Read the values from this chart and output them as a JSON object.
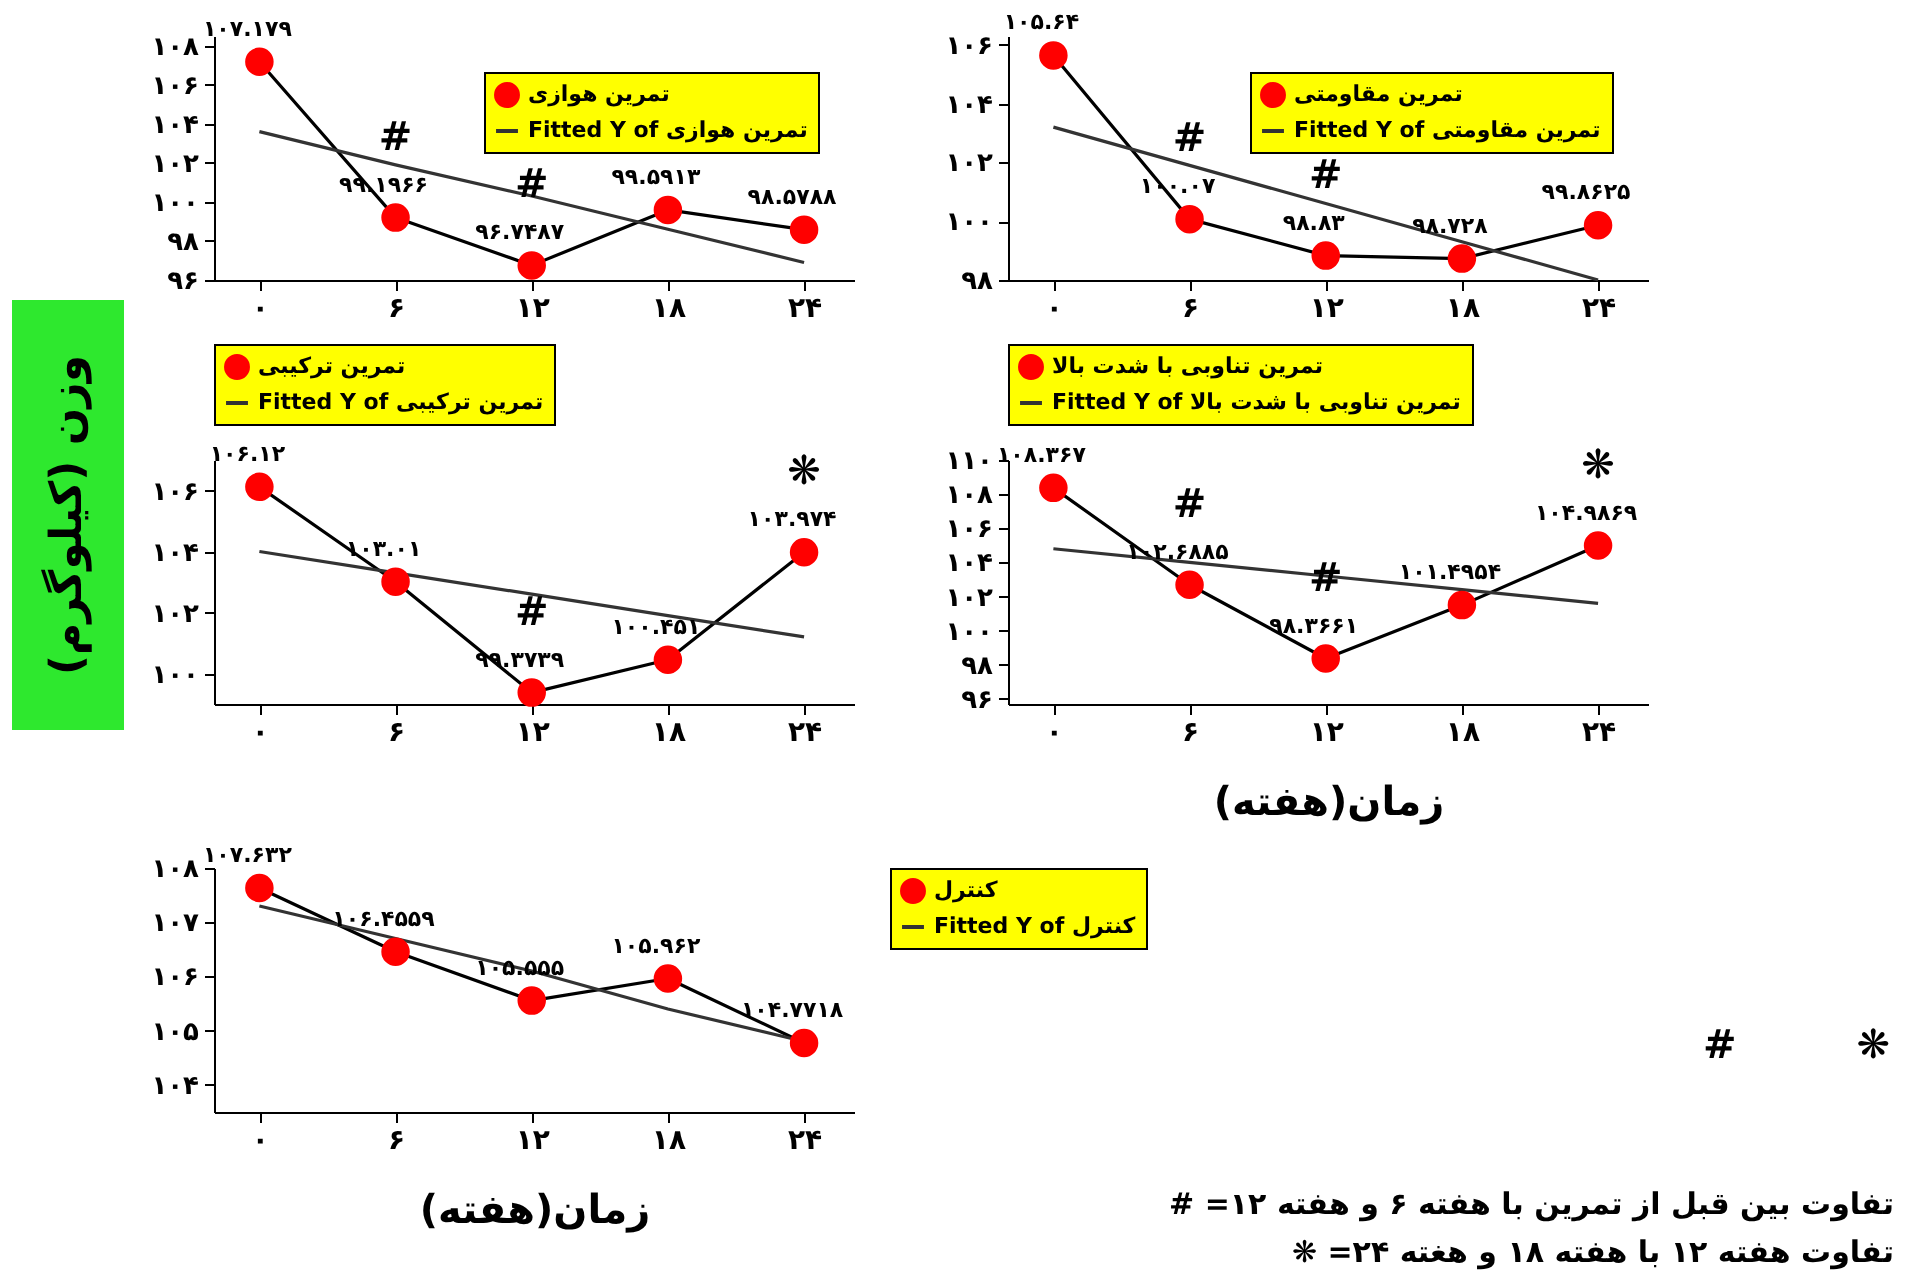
{
  "chart_data": [
    {
      "type": "line",
      "x": [
        0,
        6,
        12,
        18,
        24
      ],
      "xlim": [
        -2,
        26.2
      ],
      "xticks": [
        {
          "value": 0,
          "label": "۰"
        },
        {
          "value": 6,
          "label": "۶"
        },
        {
          "value": 12,
          "label": "۱۲"
        },
        {
          "value": 18,
          "label": "۱۸"
        },
        {
          "value": 24,
          "label": "۲۴"
        }
      ],
      "ylim": [
        96,
        108.5
      ],
      "yticks": [
        {
          "value": 96,
          "label": "۹۶"
        },
        {
          "value": 98,
          "label": "۹۸"
        },
        {
          "value": 100,
          "label": "۱۰۰"
        },
        {
          "value": 102,
          "label": "۱۰۲"
        },
        {
          "value": 104,
          "label": "۱۰۴"
        },
        {
          "value": 106,
          "label": "۱۰۶"
        },
        {
          "value": 108,
          "label": "۱۰۸"
        }
      ],
      "legend": "top right",
      "grid": false,
      "series": [
        {
          "name": "تمرین هوازی",
          "color": "#ff0000",
          "marker": "circle",
          "values": [
            107.179,
            99.1966,
            96.7487,
            99.5913,
            98.5788
          ],
          "value_labels": [
            "۱۰۷.۱۷۹",
            "۹۹.۱۹۶۶",
            "۹۶.۷۴۸۷",
            "۹۹.۵۹۱۳",
            "۹۸.۵۷۸۸"
          ]
        },
        {
          "name": "Fitted Y of تمرین هوازی",
          "color": "#333333",
          "marker": "none",
          "values": [
            103.6,
            101.9,
            100.3,
            98.6,
            96.9
          ]
        }
      ],
      "annotations": [
        {
          "text": "#",
          "x": 6,
          "y": 99.1966
        },
        {
          "text": "#",
          "x": 12,
          "y": 96.7487
        }
      ]
    },
    {
      "type": "line",
      "x": [
        0,
        6,
        12,
        18,
        24
      ],
      "xlim": [
        -2,
        26.2
      ],
      "xticks": [
        {
          "value": 0,
          "label": "۰"
        },
        {
          "value": 6,
          "label": "۶"
        },
        {
          "value": 12,
          "label": "۱۲"
        },
        {
          "value": 18,
          "label": "۱۸"
        },
        {
          "value": 24,
          "label": "۲۴"
        }
      ],
      "ylim": [
        98,
        106.3
      ],
      "yticks": [
        {
          "value": 98,
          "label": "۹۸"
        },
        {
          "value": 100,
          "label": "۱۰۰"
        },
        {
          "value": 102,
          "label": "۱۰۲"
        },
        {
          "value": 104,
          "label": "۱۰۴"
        },
        {
          "value": 106,
          "label": "۱۰۶"
        }
      ],
      "legend": "top right",
      "grid": false,
      "series": [
        {
          "name": "تمرین مقاومتی",
          "color": "#ff0000",
          "marker": "circle",
          "values": [
            105.64,
            100.07,
            98.83,
            98.728,
            99.8625
          ],
          "value_labels": [
            "۱۰۵.۶۴",
            "۱۰۰.۰۷",
            "۹۸.۸۳",
            "۹۸.۷۲۸",
            "۹۹.۸۶۲۵"
          ]
        },
        {
          "name": "Fitted Y of تمرین مقاومتی",
          "color": "#333333",
          "marker": "none",
          "values": [
            103.2,
            101.9,
            100.6,
            99.3,
            98.0
          ]
        }
      ],
      "annotations": [
        {
          "text": "#",
          "x": 6,
          "y": 100.07
        },
        {
          "text": "#",
          "x": 12,
          "y": 98.83
        }
      ]
    },
    {
      "type": "line",
      "x": [
        0,
        6,
        12,
        18,
        24
      ],
      "xlim": [
        -2,
        26.2
      ],
      "xticks": [
        {
          "value": 0,
          "label": "۰"
        },
        {
          "value": 6,
          "label": "۶"
        },
        {
          "value": 12,
          "label": "۱۲"
        },
        {
          "value": 18,
          "label": "۱۸"
        },
        {
          "value": 24,
          "label": "۲۴"
        }
      ],
      "ylim": [
        99,
        107
      ],
      "yticks": [
        {
          "value": 100,
          "label": "۱۰۰"
        },
        {
          "value": 102,
          "label": "۱۰۲"
        },
        {
          "value": 104,
          "label": "۱۰۴"
        },
        {
          "value": 106,
          "label": "۱۰۶"
        }
      ],
      "legend": "top",
      "grid": false,
      "ylabel": "وزن (کیلوگرم)",
      "series": [
        {
          "name": "تمرین ترکیبی",
          "color": "#ff0000",
          "marker": "circle",
          "values": [
            106.12,
            103.01,
            99.3739,
            100.451,
            103.974
          ],
          "value_labels": [
            "۱۰۶.۱۲",
            "۱۰۳.۰۱",
            "۹۹.۳۷۳۹",
            "۱۰۰.۴۵۱",
            "۱۰۳.۹۷۴"
          ]
        },
        {
          "name": "Fitted Y of تمرین ترکیبی",
          "color": "#333333",
          "marker": "none",
          "values": [
            104.0,
            103.3,
            102.6,
            101.9,
            101.2
          ]
        }
      ],
      "annotations": [
        {
          "text": "#",
          "x": 12,
          "y": 99.3739
        },
        {
          "text": "❋",
          "x": 24,
          "y": 103.974
        }
      ]
    },
    {
      "type": "line",
      "x": [
        0,
        6,
        12,
        18,
        24
      ],
      "xlim": [
        -2,
        26.2
      ],
      "xticks": [
        {
          "value": 0,
          "label": "۰"
        },
        {
          "value": 6,
          "label": "۶"
        },
        {
          "value": 12,
          "label": "۱۲"
        },
        {
          "value": 18,
          "label": "۱۸"
        },
        {
          "value": 24,
          "label": "۲۴"
        }
      ],
      "ylim": [
        95.7,
        110
      ],
      "yticks": [
        {
          "value": 96,
          "label": "۹۶"
        },
        {
          "value": 98,
          "label": "۹۸"
        },
        {
          "value": 100,
          "label": "۱۰۰"
        },
        {
          "value": 102,
          "label": "۱۰۲"
        },
        {
          "value": 104,
          "label": "۱۰۴"
        },
        {
          "value": 106,
          "label": "۱۰۶"
        },
        {
          "value": 108,
          "label": "۱۰۸"
        },
        {
          "value": 110,
          "label": "۱۱۰"
        }
      ],
      "legend": "top",
      "grid": false,
      "xlabel": "زمان(هفته)",
      "series": [
        {
          "name": "تمرین تناوبی با شدت بالا",
          "color": "#ff0000",
          "marker": "circle",
          "values": [
            108.367,
            102.6885,
            98.3661,
            101.4954,
            104.9869
          ],
          "value_labels": [
            "۱۰۸.۳۶۷",
            "۱۰۲.۶۸۸۵",
            "۹۸.۳۶۶۱",
            "۱۰۱.۴۹۵۴",
            "۱۰۴.۹۸۶۹"
          ]
        },
        {
          "name": "Fitted Y of تمرین تناوبی با شدت بالا",
          "color": "#333333",
          "marker": "none",
          "values": [
            104.8,
            104.0,
            103.2,
            102.4,
            101.6
          ]
        }
      ],
      "annotations": [
        {
          "text": "#",
          "x": 6,
          "y": 102.6885
        },
        {
          "text": "#",
          "x": 12,
          "y": 98.3661
        },
        {
          "text": "❋",
          "x": 24,
          "y": 104.9869
        }
      ]
    },
    {
      "type": "line",
      "x": [
        0,
        6,
        12,
        18,
        24
      ],
      "xlim": [
        -2,
        26.2
      ],
      "xticks": [
        {
          "value": 0,
          "label": "۰"
        },
        {
          "value": 6,
          "label": "۶"
        },
        {
          "value": 12,
          "label": "۱۲"
        },
        {
          "value": 18,
          "label": "۱۸"
        },
        {
          "value": 24,
          "label": "۲۴"
        }
      ],
      "ylim": [
        103.5,
        108
      ],
      "yticks": [
        {
          "value": 104,
          "label": "۱۰۴"
        },
        {
          "value": 105,
          "label": "۱۰۵"
        },
        {
          "value": 106,
          "label": "۱۰۶"
        },
        {
          "value": 107,
          "label": "۱۰۷"
        },
        {
          "value": 108,
          "label": "۱۰۸"
        }
      ],
      "legend": "right",
      "grid": false,
      "xlabel": "زمان(هفته)",
      "series": [
        {
          "name": "کنترل",
          "color": "#ff0000",
          "marker": "circle",
          "values": [
            107.632,
            106.4559,
            105.555,
            105.962,
            104.7718
          ],
          "value_labels": [
            "۱۰۷.۶۳۲",
            "۱۰۶.۴۵۵۹",
            "۱۰۵.۵۵۵",
            "۱۰۵.۹۶۲",
            "۱۰۴.۷۷۱۸"
          ]
        },
        {
          "name": "Fitted Y of کنترل",
          "color": "#333333",
          "marker": "none",
          "values": [
            107.3,
            106.7,
            106.1,
            105.4,
            104.8
          ]
        }
      ],
      "annotations": [
        "#",
        "❋",
        "تفاوت بین قبل از تمرین با هفته ۶ و هفته ۱۲= #",
        "تفاوت هفته ۱۲ با هفته ۱۸ و هغته ۲۴= ❋"
      ]
    }
  ]
}
